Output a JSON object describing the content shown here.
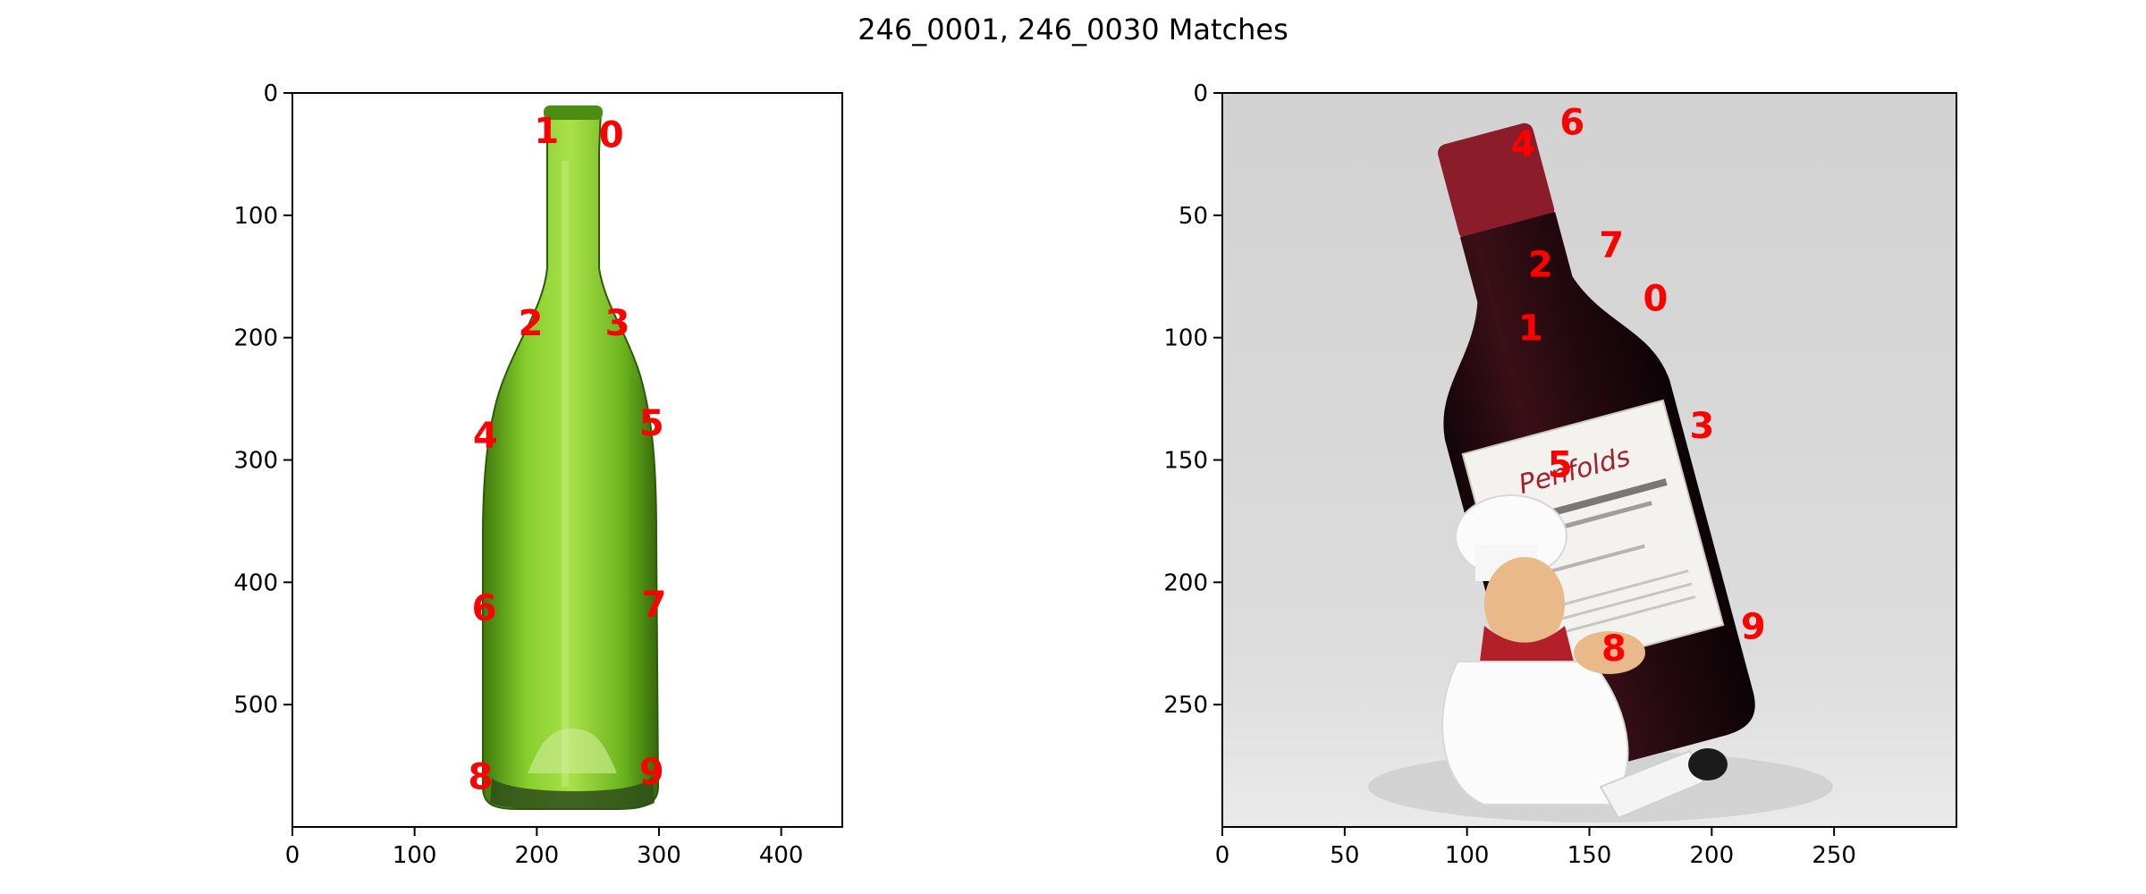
{
  "title": "246_0001, 246_0030 Matches",
  "colors": {
    "keypoint": "#ff0000",
    "left_bottle": "#6fbf1e",
    "right_bottle": "#2a0a0e",
    "right_background": "#d9d9d9"
  },
  "chart_data": [
    {
      "type": "scatter",
      "name": "246_0001",
      "image": "green glass wine bottle on white background",
      "xlim": [
        0,
        450
      ],
      "ylim": [
        600,
        0
      ],
      "xticks": [
        0,
        100,
        200,
        300,
        400
      ],
      "yticks": [
        0,
        100,
        200,
        300,
        400,
        500
      ],
      "points": [
        {
          "label": "0",
          "x": 261,
          "y": 36
        },
        {
          "label": "1",
          "x": 208,
          "y": 33
        },
        {
          "label": "2",
          "x": 195,
          "y": 190
        },
        {
          "label": "3",
          "x": 266,
          "y": 190
        },
        {
          "label": "4",
          "x": 158,
          "y": 282
        },
        {
          "label": "5",
          "x": 294,
          "y": 272
        },
        {
          "label": "6",
          "x": 157,
          "y": 423
        },
        {
          "label": "7",
          "x": 296,
          "y": 420
        },
        {
          "label": "8",
          "x": 154,
          "y": 561
        },
        {
          "label": "9",
          "x": 294,
          "y": 557
        }
      ]
    },
    {
      "type": "scatter",
      "name": "246_0030",
      "image": "red wine bottle held by chef figurine on grey background",
      "xlim": [
        0,
        300
      ],
      "ylim": [
        300,
        0
      ],
      "xticks": [
        0,
        50,
        100,
        150,
        200,
        250
      ],
      "yticks": [
        0,
        50,
        100,
        150,
        200,
        250
      ],
      "points": [
        {
          "label": "0",
          "x": 177,
          "y": 85
        },
        {
          "label": "1",
          "x": 126,
          "y": 97
        },
        {
          "label": "2",
          "x": 130,
          "y": 71
        },
        {
          "label": "3",
          "x": 196,
          "y": 137
        },
        {
          "label": "4",
          "x": 123,
          "y": 22
        },
        {
          "label": "5",
          "x": 138,
          "y": 153
        },
        {
          "label": "6",
          "x": 143,
          "y": 13
        },
        {
          "label": "7",
          "x": 159,
          "y": 63
        },
        {
          "label": "8",
          "x": 160,
          "y": 228
        },
        {
          "label": "9",
          "x": 217,
          "y": 219
        }
      ]
    }
  ]
}
